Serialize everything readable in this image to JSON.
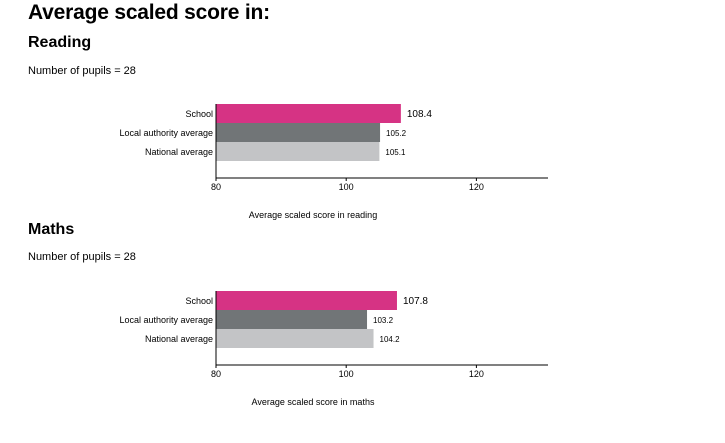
{
  "page_title": "Average scaled score in:",
  "sections": [
    {
      "heading": "Reading",
      "pupils_text": "Number of pupils = 28"
    },
    {
      "heading": "Maths",
      "pupils_text": "Number of pupils = 28"
    }
  ],
  "chart_data": [
    {
      "type": "bar",
      "orientation": "horizontal",
      "categories": [
        "School",
        "Local authority average",
        "National average"
      ],
      "values": [
        108.4,
        105.2,
        105.1
      ],
      "value_labels": [
        "108.4",
        "105.2",
        "105.1"
      ],
      "colors": [
        "#d63384",
        "#717577",
        "#c3c4c6"
      ],
      "xlabel": "Average scaled score in reading",
      "xlim": [
        80,
        131
      ],
      "xticks": [
        80,
        100,
        120
      ],
      "grid": false
    },
    {
      "type": "bar",
      "orientation": "horizontal",
      "categories": [
        "School",
        "Local authority average",
        "National average"
      ],
      "values": [
        107.8,
        103.2,
        104.2
      ],
      "value_labels": [
        "107.8",
        "103.2",
        "104.2"
      ],
      "colors": [
        "#d63384",
        "#717577",
        "#c3c4c6"
      ],
      "xlabel": "Average scaled score in maths",
      "xlim": [
        80,
        131
      ],
      "xticks": [
        80,
        100,
        120
      ],
      "grid": false
    }
  ]
}
